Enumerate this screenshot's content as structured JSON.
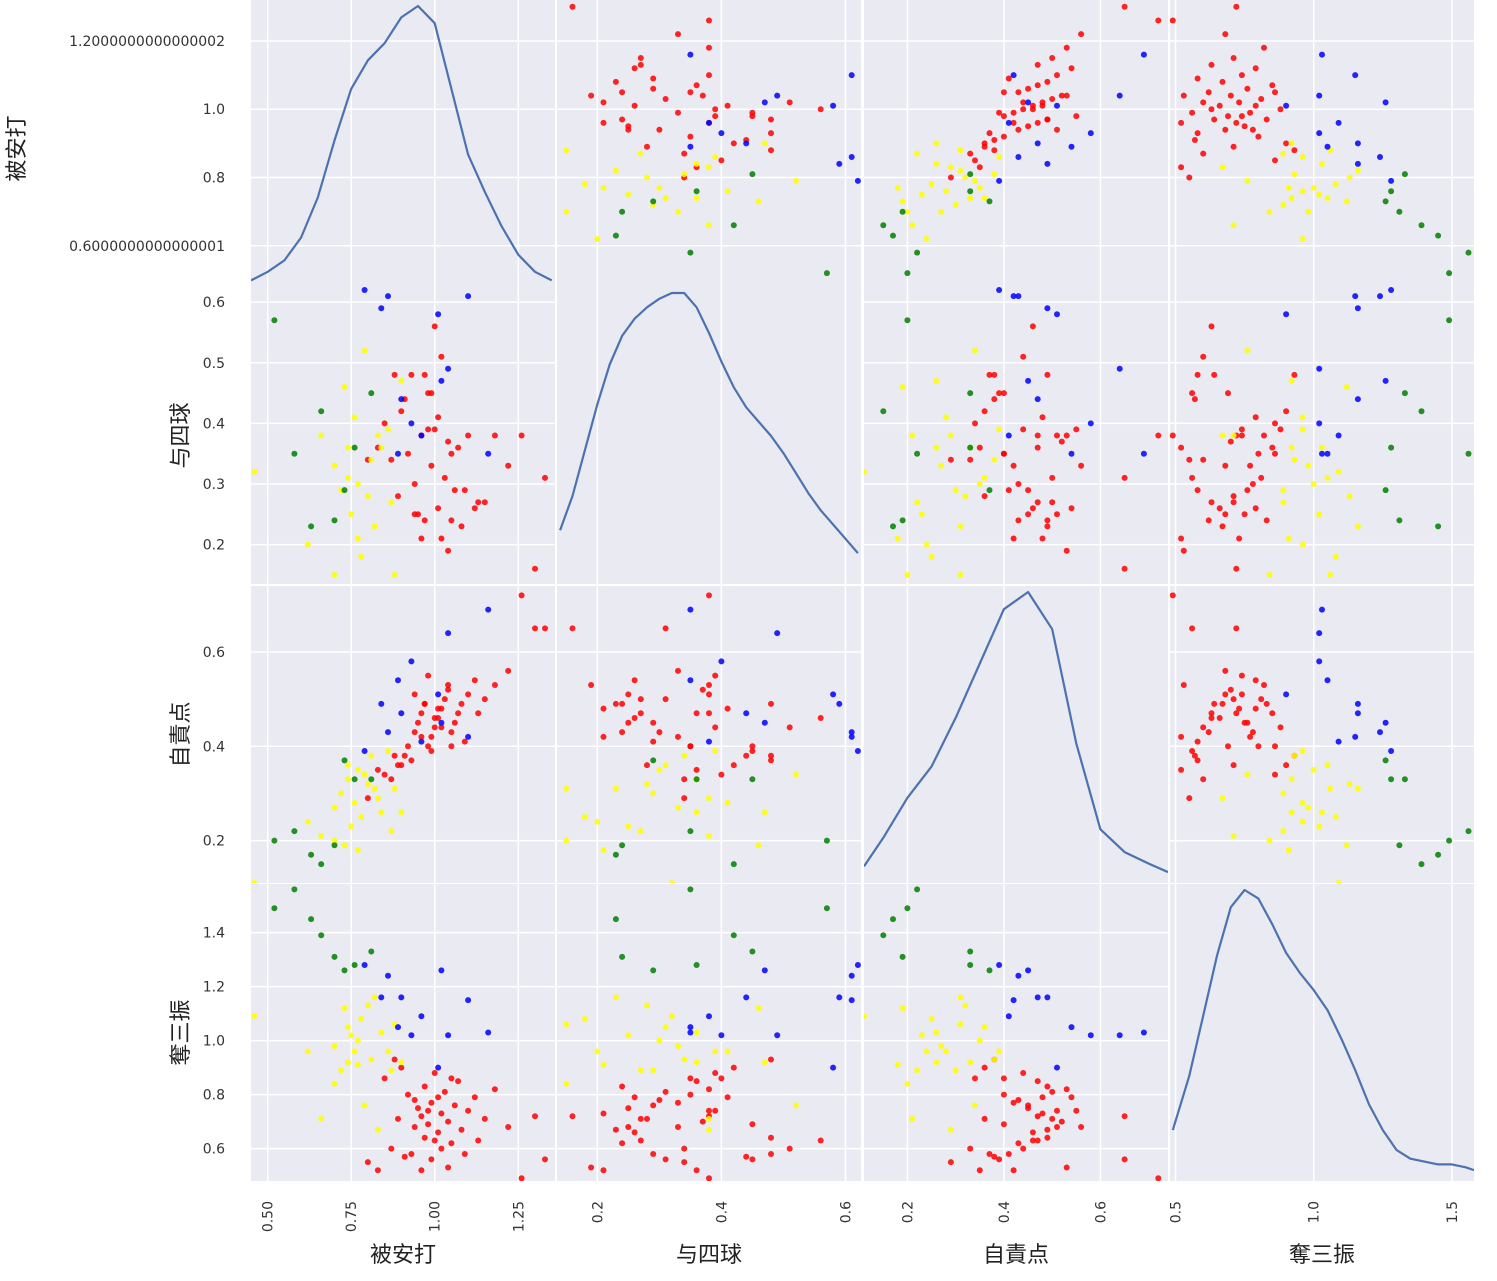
{
  "chart_data": {
    "type": "scatter_matrix",
    "title": "",
    "variables": [
      "被安打",
      "与四球",
      "自責点",
      "奪三振"
    ],
    "diagonal": "kde",
    "grid": true,
    "colors": {
      "background": "#EAEAF2",
      "grid": "#FFFFFF",
      "kde_line": "#4C72B0",
      "red": "#FF0000",
      "yellow": "#FFFF00",
      "blue": "#0000FF",
      "green": "#008000"
    },
    "axes": {
      "x": [
        {
          "variable": "被安打",
          "xlim": [
            0.45,
            1.36
          ],
          "ticks": [
            0.5,
            0.75,
            1.0,
            1.25
          ],
          "tick_labels": [
            "0.50",
            "0.75",
            "1.00",
            "1.25"
          ]
        },
        {
          "variable": "与四球",
          "xlim": [
            0.135,
            0.625
          ],
          "ticks": [
            0.2,
            0.4,
            0.6
          ],
          "tick_labels": [
            "0.2",
            "0.4",
            "0.6"
          ]
        },
        {
          "variable": "自責点",
          "xlim": [
            0.11,
            0.74
          ],
          "ticks": [
            0.2,
            0.4,
            0.6
          ],
          "tick_labels": [
            "0.2",
            "0.4",
            "0.6"
          ]
        },
        {
          "variable": "奪三振",
          "xlim": [
            0.48,
            1.58
          ],
          "ticks": [
            0.5,
            1.0,
            1.5
          ],
          "tick_labels": [
            "0.5",
            "1.0",
            "1.5"
          ]
        }
      ],
      "y": [
        {
          "variable": "被安打",
          "ylim": [
            0.45,
            1.32
          ],
          "ticks": [
            0.6000000000000001,
            0.8,
            1.0,
            1.2000000000000002
          ],
          "tick_labels": [
            "0.6000000000000001",
            "0.8",
            "1.0",
            "1.2000000000000002"
          ]
        },
        {
          "variable": "与四球",
          "ylim": [
            0.135,
            0.625
          ],
          "ticks": [
            0.2,
            0.3,
            0.4,
            0.5,
            0.6
          ],
          "tick_labels": [
            "0.2",
            "0.3",
            "0.4",
            "0.5",
            "0.6"
          ]
        },
        {
          "variable": "自責点",
          "ylim": [
            0.11,
            0.74
          ],
          "ticks": [
            0.2,
            0.4,
            0.6
          ],
          "tick_labels": [
            "0.2",
            "0.4",
            "0.6"
          ]
        },
        {
          "variable": "奪三振",
          "ylim": [
            0.48,
            1.58
          ],
          "ticks": [
            0.6,
            0.8,
            1.0,
            1.2,
            1.4
          ],
          "tick_labels": [
            "0.6",
            "0.8",
            "1.0",
            "1.2",
            "1.4"
          ]
        }
      ]
    },
    "groups": [
      {
        "name": "red",
        "color": "#FF0000",
        "points": [
          [
            0.85,
            0.4,
            0.34,
            0.86
          ],
          [
            0.88,
            0.48,
            0.38,
            0.93
          ],
          [
            0.9,
            0.42,
            0.36,
            0.9
          ],
          [
            0.92,
            0.35,
            0.4,
            0.8
          ],
          [
            0.94,
            0.3,
            0.43,
            0.78
          ],
          [
            0.95,
            0.25,
            0.45,
            0.75
          ],
          [
            0.96,
            0.38,
            0.47,
            0.72
          ],
          [
            0.97,
            0.24,
            0.49,
            0.83
          ],
          [
            0.98,
            0.45,
            0.4,
            0.69
          ],
          [
            0.99,
            0.33,
            0.42,
            0.77
          ],
          [
            1.0,
            0.39,
            0.44,
            0.88
          ],
          [
            1.01,
            0.26,
            0.46,
            0.66
          ],
          [
            1.02,
            0.21,
            0.48,
            0.73
          ],
          [
            1.03,
            0.31,
            0.5,
            0.81
          ],
          [
            1.04,
            0.37,
            0.52,
            0.7
          ],
          [
            1.05,
            0.24,
            0.43,
            0.62
          ],
          [
            1.06,
            0.29,
            0.45,
            0.76
          ],
          [
            1.07,
            0.36,
            0.47,
            0.85
          ],
          [
            1.08,
            0.23,
            0.49,
            0.67
          ],
          [
            1.1,
            0.38,
            0.51,
            0.74
          ],
          [
            1.12,
            0.26,
            0.54,
            0.79
          ],
          [
            1.15,
            0.27,
            0.5,
            0.71
          ],
          [
            1.18,
            0.38,
            0.53,
            0.82
          ],
          [
            1.22,
            0.33,
            0.56,
            0.68
          ],
          [
            1.3,
            0.16,
            0.65,
            0.72
          ],
          [
            1.26,
            0.38,
            0.72,
            0.49
          ],
          [
            1.33,
            0.31,
            0.65,
            0.56
          ],
          [
            0.93,
            0.48,
            0.37,
            0.58
          ],
          [
            0.96,
            0.21,
            0.42,
            0.52
          ],
          [
            0.99,
            0.45,
            0.39,
            0.56
          ],
          [
            1.02,
            0.51,
            0.44,
            0.6
          ],
          [
            1.0,
            0.56,
            0.46,
            0.63
          ],
          [
            0.97,
            0.48,
            0.49,
            0.64
          ],
          [
            0.91,
            0.44,
            0.38,
            0.57
          ],
          [
            0.87,
            0.34,
            0.33,
            0.6
          ],
          [
            0.83,
            0.36,
            0.35,
            0.52
          ],
          [
            0.8,
            0.34,
            0.29,
            0.55
          ],
          [
            1.09,
            0.29,
            0.41,
            0.58
          ],
          [
            1.13,
            0.27,
            0.47,
            0.63
          ],
          [
            1.04,
            0.19,
            0.53,
            0.53
          ],
          [
            0.94,
            0.25,
            0.51,
            0.68
          ],
          [
            0.98,
            0.39,
            0.55,
            0.74
          ],
          [
            1.01,
            0.41,
            0.48,
            0.79
          ],
          [
            1.05,
            0.35,
            0.4,
            0.86
          ],
          [
            0.89,
            0.28,
            0.36,
            0.71
          ]
        ]
      },
      {
        "name": "yellow",
        "color": "#FFFF00",
        "points": [
          [
            0.46,
            0.32,
            0.11,
            1.09
          ],
          [
            0.62,
            0.2,
            0.24,
            0.96
          ],
          [
            0.66,
            0.38,
            0.21,
            0.71
          ],
          [
            0.7,
            0.33,
            0.27,
            0.98
          ],
          [
            0.72,
            0.29,
            0.3,
            0.89
          ],
          [
            0.74,
            0.36,
            0.33,
            0.92
          ],
          [
            0.75,
            0.25,
            0.23,
            1.02
          ],
          [
            0.76,
            0.41,
            0.28,
            0.96
          ],
          [
            0.77,
            0.3,
            0.35,
            1.0
          ],
          [
            0.78,
            0.18,
            0.25,
            1.08
          ],
          [
            0.8,
            0.28,
            0.32,
            1.13
          ],
          [
            0.81,
            0.34,
            0.38,
            0.93
          ],
          [
            0.82,
            0.23,
            0.31,
            1.16
          ],
          [
            0.84,
            0.36,
            0.26,
            1.03
          ],
          [
            0.86,
            0.39,
            0.39,
            0.96
          ],
          [
            0.87,
            0.27,
            0.22,
            0.89
          ],
          [
            0.7,
            0.15,
            0.2,
            0.84
          ],
          [
            0.73,
            0.46,
            0.19,
            1.12
          ],
          [
            0.79,
            0.52,
            0.34,
            0.76
          ],
          [
            0.83,
            0.38,
            0.29,
            0.67
          ],
          [
            0.88,
            0.15,
            0.31,
            1.06
          ],
          [
            0.9,
            0.47,
            0.26,
            0.92
          ],
          [
            0.74,
            0.31,
            0.36,
            1.05
          ],
          [
            0.77,
            0.21,
            0.18,
            0.91
          ]
        ]
      },
      {
        "name": "blue",
        "color": "#0000FF",
        "points": [
          [
            0.89,
            0.35,
            0.54,
            1.05
          ],
          [
            0.9,
            0.44,
            0.47,
            1.16
          ],
          [
            0.93,
            0.4,
            0.58,
            1.02
          ],
          [
            0.96,
            0.38,
            0.41,
            1.09
          ],
          [
            1.01,
            0.58,
            0.51,
            0.9
          ],
          [
            1.02,
            0.47,
            0.45,
            1.26
          ],
          [
            1.04,
            0.49,
            0.64,
            1.02
          ],
          [
            1.1,
            0.61,
            0.42,
            1.15
          ],
          [
            1.16,
            0.35,
            0.69,
            1.03
          ],
          [
            0.79,
            0.62,
            0.39,
            1.28
          ],
          [
            0.86,
            0.61,
            0.43,
            1.24
          ],
          [
            0.84,
            0.59,
            0.49,
            1.16
          ]
        ]
      },
      {
        "name": "green",
        "color": "#008000",
        "points": [
          [
            0.52,
            0.57,
            0.2,
            1.49
          ],
          [
            0.58,
            0.35,
            0.22,
            1.56
          ],
          [
            0.63,
            0.23,
            0.17,
            1.45
          ],
          [
            0.66,
            0.42,
            0.15,
            1.39
          ],
          [
            0.7,
            0.24,
            0.19,
            1.31
          ],
          [
            0.73,
            0.29,
            0.37,
            1.26
          ],
          [
            0.76,
            0.36,
            0.33,
            1.28
          ],
          [
            0.81,
            0.45,
            0.33,
            1.33
          ]
        ]
      }
    ],
    "kde": [
      {
        "variable": "被安打",
        "x": [
          0.45,
          0.5,
          0.55,
          0.6,
          0.65,
          0.7,
          0.75,
          0.8,
          0.85,
          0.9,
          0.95,
          1.0,
          1.05,
          1.1,
          1.15,
          1.2,
          1.25,
          1.3,
          1.35
        ],
        "density": [
          0.03,
          0.06,
          0.1,
          0.18,
          0.32,
          0.52,
          0.7,
          0.8,
          0.86,
          0.95,
          0.99,
          0.93,
          0.7,
          0.47,
          0.34,
          0.22,
          0.12,
          0.06,
          0.03
        ]
      },
      {
        "variable": "与四球",
        "x": [
          0.14,
          0.16,
          0.18,
          0.2,
          0.22,
          0.24,
          0.26,
          0.28,
          0.3,
          0.32,
          0.34,
          0.36,
          0.38,
          0.4,
          0.42,
          0.44,
          0.46,
          0.48,
          0.5,
          0.52,
          0.54,
          0.56,
          0.58,
          0.6,
          0.62
        ],
        "density": [
          0.16,
          0.28,
          0.44,
          0.6,
          0.74,
          0.84,
          0.9,
          0.94,
          0.97,
          0.99,
          0.99,
          0.94,
          0.85,
          0.75,
          0.66,
          0.59,
          0.54,
          0.49,
          0.43,
          0.36,
          0.29,
          0.23,
          0.18,
          0.13,
          0.08
        ]
      },
      {
        "variable": "自責点",
        "x": [
          0.11,
          0.15,
          0.2,
          0.25,
          0.3,
          0.35,
          0.4,
          0.45,
          0.5,
          0.55,
          0.6,
          0.65,
          0.7,
          0.74
        ],
        "density": [
          0.03,
          0.13,
          0.27,
          0.38,
          0.55,
          0.74,
          0.93,
          0.99,
          0.86,
          0.46,
          0.16,
          0.08,
          0.04,
          0.01
        ]
      },
      {
        "variable": "奪三振",
        "x": [
          0.49,
          0.55,
          0.6,
          0.65,
          0.7,
          0.75,
          0.8,
          0.85,
          0.9,
          0.95,
          1.0,
          1.05,
          1.1,
          1.15,
          1.2,
          1.25,
          1.3,
          1.35,
          1.4,
          1.45,
          1.5,
          1.55,
          1.58
        ],
        "density": [
          0.15,
          0.34,
          0.55,
          0.76,
          0.93,
          0.99,
          0.96,
          0.87,
          0.77,
          0.7,
          0.64,
          0.57,
          0.47,
          0.36,
          0.24,
          0.15,
          0.08,
          0.05,
          0.04,
          0.03,
          0.03,
          0.02,
          0.01
        ]
      }
    ]
  }
}
